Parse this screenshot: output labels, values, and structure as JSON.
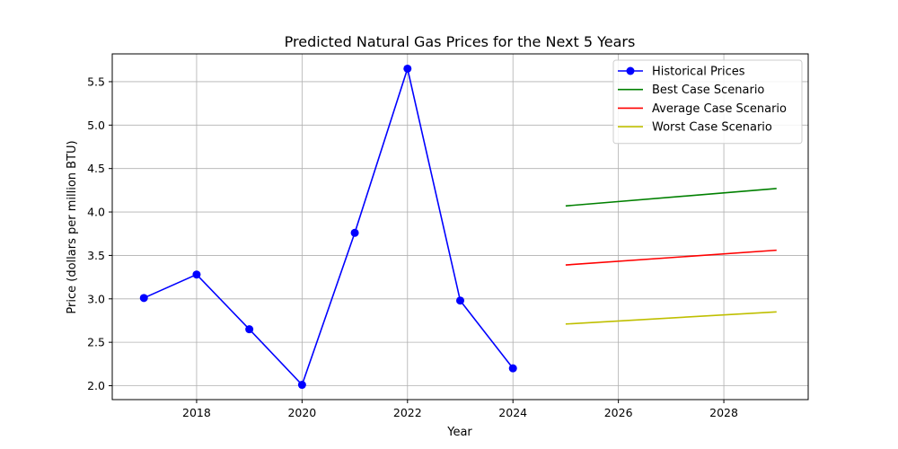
{
  "chart_data": {
    "type": "line",
    "title": "Predicted Natural Gas Prices for the Next 5 Years",
    "xlabel": "Year",
    "ylabel": "Price (dollars per million BTU)",
    "xlim": [
      2016.4,
      2029.6
    ],
    "ylim": [
      1.84,
      5.82
    ],
    "xticks": [
      2018,
      2020,
      2022,
      2024,
      2026,
      2028
    ],
    "yticks": [
      2.0,
      2.5,
      3.0,
      3.5,
      4.0,
      4.5,
      5.0,
      5.5
    ],
    "grid": true,
    "legend_position": "top-right",
    "series": [
      {
        "name": "Historical Prices",
        "color": "#0000ff",
        "marker": "circle",
        "x": [
          2017,
          2018,
          2019,
          2020,
          2021,
          2022,
          2023,
          2024
        ],
        "y": [
          3.01,
          3.28,
          2.65,
          2.01,
          3.76,
          5.65,
          2.98,
          2.2
        ]
      },
      {
        "name": "Best Case Scenario",
        "color": "#008000",
        "marker": "none",
        "x": [
          2025,
          2029
        ],
        "y": [
          4.07,
          4.27
        ]
      },
      {
        "name": "Average Case Scenario",
        "color": "#ff0000",
        "marker": "none",
        "x": [
          2025,
          2029
        ],
        "y": [
          3.39,
          3.56
        ]
      },
      {
        "name": "Worst Case Scenario",
        "color": "#bfbf00",
        "marker": "none",
        "x": [
          2025,
          2029
        ],
        "y": [
          2.71,
          2.85
        ]
      }
    ]
  }
}
